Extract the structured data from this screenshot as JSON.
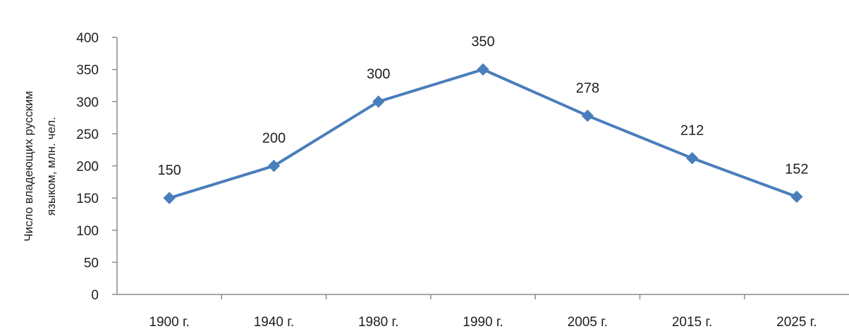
{
  "chart_data": {
    "type": "line",
    "title": "",
    "ylabel_lines": [
      "Число владеющих русским",
      "языком, млн. чел."
    ],
    "xlabel": "",
    "categories": [
      "1900 г.",
      "1940 г.",
      "1980 г.",
      "1990 г.",
      "2005 г.",
      "2015 г.",
      "2025 г."
    ],
    "series": [
      {
        "values": [
          150,
          200,
          300,
          350,
          278,
          212,
          152
        ],
        "data_labels": [
          "150",
          "200",
          "300",
          "350",
          "278",
          "212",
          "152"
        ],
        "color": "#4a7ebb",
        "marker": "diamond"
      }
    ],
    "ylim": [
      0,
      400
    ],
    "yticks": [
      0,
      50,
      100,
      150,
      200,
      250,
      300,
      350,
      400
    ],
    "ytick_labels": [
      "0",
      "50",
      "100",
      "150",
      "200",
      "250",
      "300",
      "350",
      "400"
    ],
    "grid": false,
    "legend": "none",
    "axis_color": "#8c8c8c"
  }
}
